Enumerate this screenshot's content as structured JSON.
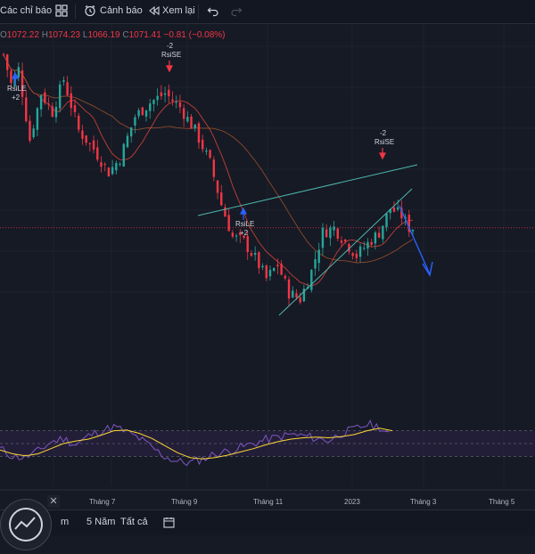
{
  "toolbar": {
    "indicators_label": "Các chỉ báo",
    "alert_label": "Cảnh báo",
    "replay_label": "Xem lại"
  },
  "legend": {
    "o_key": "O",
    "o_val": "1072.22",
    "h_key": "H",
    "h_val": "1074.23",
    "l_key": "L",
    "l_val": "1066.19",
    "c_key": "C",
    "c_val": "1071.41",
    "change": "−0.81 (−0.08%)"
  },
  "signals": {
    "rsile_1": {
      "label": "RsiLE",
      "value": "+2"
    },
    "rsise_1": {
      "label": "RsiSE",
      "value": "-2"
    },
    "rsile_2": {
      "label": "RsiLE",
      "value": "+2"
    },
    "rsise_2": {
      "label": "RsiSE",
      "value": "-2"
    }
  },
  "bottom": {
    "range_5y": "5 Năm",
    "range_all": "Tất cả",
    "range_prefix": "m"
  },
  "colors": {
    "background": "#161a25",
    "up": "#26a69a",
    "down": "#f23645",
    "ma_fast": "#e0453a",
    "ma_slow": "#a0522d",
    "trendline": "#4db6ac",
    "forecast": "#2962ff",
    "rsi": "#7e57c2",
    "rsi_ma": "#fdd835",
    "price_line": "#f23645"
  },
  "chart_data": [
    {
      "type": "candlestick",
      "title": "",
      "x_tick_labels": [
        "Tháng 7",
        "Tháng 9",
        "Tháng 11",
        "2023",
        "Tháng 3",
        "Tháng 5"
      ],
      "y_range": [
        780,
        1100
      ],
      "close_series_approx": [
        {
          "x": 0,
          "y": 1072
        },
        {
          "x": 2,
          "y": 1040
        },
        {
          "x": 4,
          "y": 1056
        },
        {
          "x": 7,
          "y": 980
        },
        {
          "x": 10,
          "y": 1030
        },
        {
          "x": 13,
          "y": 1010
        },
        {
          "x": 16,
          "y": 1045
        },
        {
          "x": 20,
          "y": 990
        },
        {
          "x": 24,
          "y": 970
        },
        {
          "x": 28,
          "y": 945
        },
        {
          "x": 31,
          "y": 960
        },
        {
          "x": 35,
          "y": 1005
        },
        {
          "x": 39,
          "y": 1020
        },
        {
          "x": 43,
          "y": 1030
        },
        {
          "x": 47,
          "y": 1015
        },
        {
          "x": 51,
          "y": 990
        },
        {
          "x": 55,
          "y": 955
        },
        {
          "x": 58,
          "y": 910
        },
        {
          "x": 61,
          "y": 875
        },
        {
          "x": 64,
          "y": 870
        },
        {
          "x": 67,
          "y": 852
        },
        {
          "x": 70,
          "y": 830
        },
        {
          "x": 73,
          "y": 845
        },
        {
          "x": 76,
          "y": 815
        },
        {
          "x": 79,
          "y": 808
        },
        {
          "x": 82,
          "y": 838
        },
        {
          "x": 85,
          "y": 880
        },
        {
          "x": 88,
          "y": 885
        },
        {
          "x": 91,
          "y": 870
        },
        {
          "x": 94,
          "y": 855
        },
        {
          "x": 97,
          "y": 868
        },
        {
          "x": 100,
          "y": 880
        },
        {
          "x": 103,
          "y": 906
        },
        {
          "x": 106,
          "y": 898
        },
        {
          "x": 108,
          "y": 885
        }
      ],
      "signals": [
        {
          "label": "RsiLE",
          "value": "+2",
          "x": 1,
          "kind": "long"
        },
        {
          "label": "RsiSE",
          "value": "-2",
          "x": 44,
          "kind": "short"
        },
        {
          "label": "RsiLE",
          "value": "+2",
          "x": 63,
          "kind": "long"
        },
        {
          "label": "RsiSE",
          "value": "-2",
          "x": 104,
          "kind": "short"
        }
      ],
      "last_price": 885
    },
    {
      "type": "line",
      "title": "",
      "y_range": [
        0,
        100
      ],
      "bands": [
        30,
        50,
        70
      ],
      "series": [
        {
          "key": "rsi",
          "values": [
            42,
            30,
            28,
            38,
            52,
            58,
            48,
            62,
            70,
            76,
            68,
            58,
            44,
            30,
            22,
            20,
            26,
            34,
            38,
            44,
            50,
            56,
            60,
            64,
            62,
            58,
            55,
            66,
            72,
            80,
            76,
            58
          ]
        },
        {
          "key": "rsi_ma",
          "values": [
            40,
            34,
            31,
            34,
            42,
            50,
            54,
            57,
            63,
            70,
            71,
            66,
            58,
            47,
            36,
            28,
            26,
            28,
            32,
            37,
            42,
            48,
            53,
            57,
            59,
            60,
            59,
            61,
            64,
            70,
            74,
            70
          ]
        }
      ]
    }
  ]
}
